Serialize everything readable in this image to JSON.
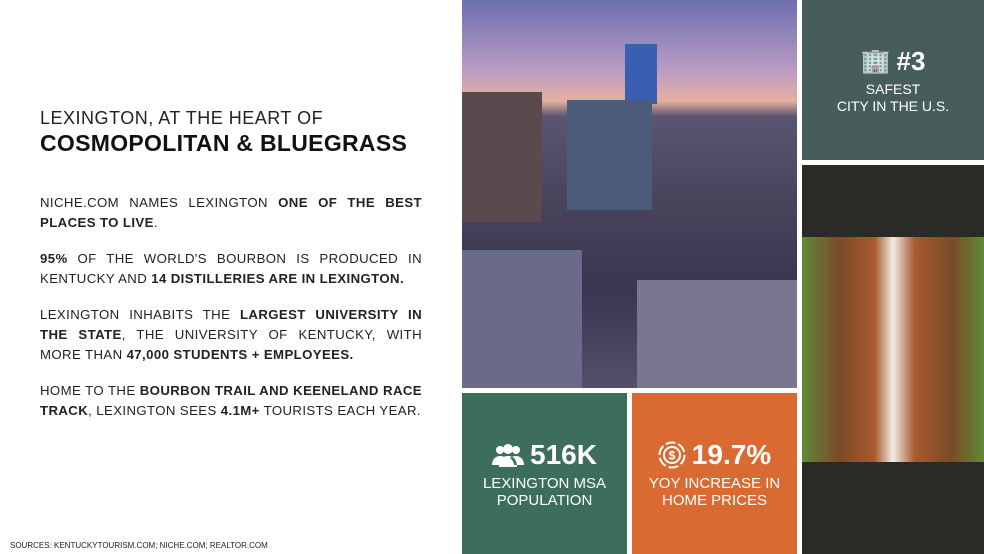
{
  "header": {
    "kicker": "LEXINGTON, AT THE HEART OF",
    "title": "COSMOPOLITAN & BLUEGRASS"
  },
  "paragraphs": [
    {
      "a": "NICHE.COM NAMES LEXINGTON ",
      "b": "ONE OF THE BEST PLACES TO LIVE",
      "c": "."
    },
    {
      "a": "",
      "b": "95%",
      "c": " OF THE WORLD'S BOURBON IS PRODUCED IN KENTUCKY AND ",
      "d": "14 DISTILLERIES ARE IN LEXINGTON."
    },
    {
      "a": "LEXINGTON INHABITS THE ",
      "b": "LARGEST UNIVERSITY IN THE STATE",
      "c": ", THE UNIVERSITY OF KENTUCKY, WITH MORE THAN ",
      "d": "47,000 STUDENTS + EMPLOYEES."
    },
    {
      "a": "HOME TO THE ",
      "b": "BOURBON TRAIL AND KEENELAND RACE TRACK",
      "c": ", LEXINGTON SEES ",
      "d": "4.1M+",
      "e": " TOURISTS EACH YEAR."
    }
  ],
  "sources": "SOURCES: KENTUCKYTOURISM.COM; NICHE.COM; REALTOR.COM",
  "tiles": {
    "safe": {
      "value": "#3",
      "line1": "SAFEST",
      "line2": "CITY IN THE U.S.",
      "icon": "city-buildings-icon",
      "color": "#475d5c"
    },
    "population": {
      "value": "516K",
      "line1": "LEXINGTON MSA",
      "line2": "POPULATION",
      "icon": "people-icon",
      "color": "#3d6e5c"
    },
    "home": {
      "value": "19.7%",
      "line1": "YOY INCREASE IN",
      "line2": "HOME PRICES",
      "icon": "dollar-circle-icon",
      "color": "#d96a32"
    }
  },
  "photos": {
    "city": "downtown Lexington at dusk",
    "horse": "horse over fence"
  }
}
